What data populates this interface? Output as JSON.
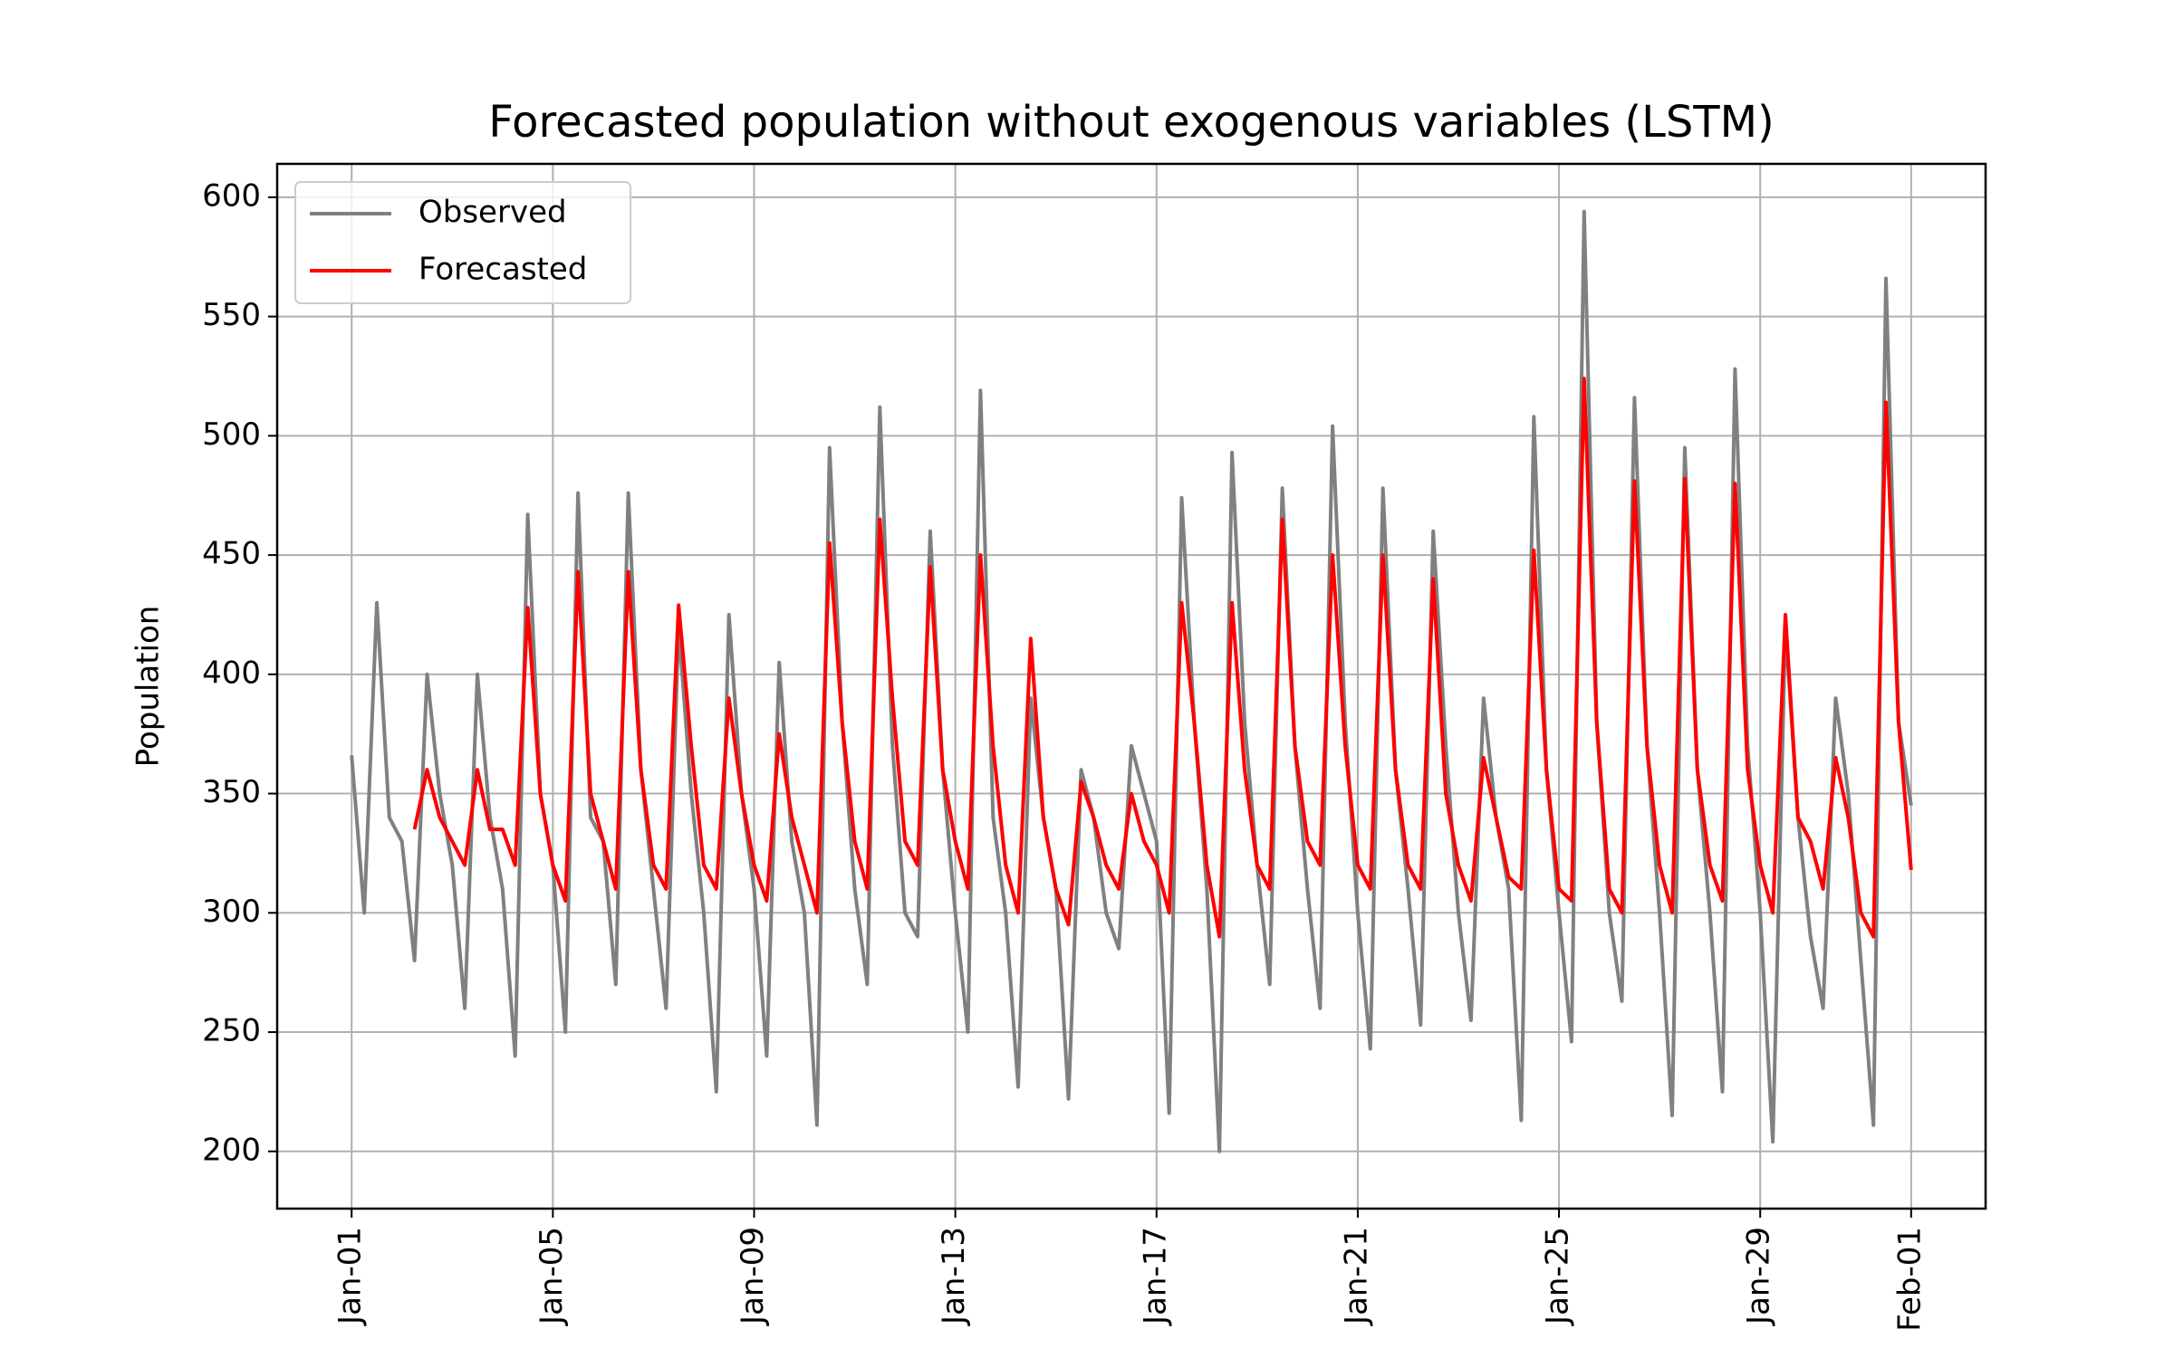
{
  "chart_data": {
    "type": "line",
    "title": "Forecasted population without exogenous variables (LSTM)",
    "y_label": "Population",
    "x": [
      0,
      0.25,
      0.5,
      0.75,
      1,
      1.25,
      1.5,
      1.75,
      2,
      2.25,
      2.5,
      2.75,
      3,
      3.25,
      3.5,
      3.75,
      4,
      4.25,
      4.5,
      4.75,
      5,
      5.25,
      5.5,
      5.75,
      6,
      6.25,
      6.5,
      6.75,
      7,
      7.25,
      7.5,
      7.75,
      8,
      8.25,
      8.5,
      8.75,
      9,
      9.25,
      9.5,
      9.75,
      10,
      10.25,
      10.5,
      10.75,
      11,
      11.25,
      11.5,
      11.75,
      12,
      12.25,
      12.5,
      12.75,
      13,
      13.25,
      13.5,
      13.75,
      14,
      14.25,
      14.5,
      14.75,
      15,
      15.25,
      15.5,
      15.75,
      16,
      16.25,
      16.5,
      16.75,
      17,
      17.25,
      17.5,
      17.75,
      18,
      18.25,
      18.5,
      18.75,
      19,
      19.25,
      19.5,
      19.75,
      20,
      20.25,
      20.5,
      20.75,
      21,
      21.25,
      21.5,
      21.75,
      22,
      22.25,
      22.5,
      22.75,
      23,
      23.25,
      23.5,
      23.75,
      24,
      24.25,
      24.5,
      24.75,
      25,
      25.25,
      25.5,
      25.75,
      26,
      26.25,
      26.5,
      26.75,
      27,
      27.25,
      27.5,
      27.75,
      28,
      28.25,
      28.5,
      28.75,
      29,
      29.25,
      29.5,
      29.75,
      30,
      30.25,
      30.5,
      30.75,
      31
    ],
    "series": [
      {
        "name": "Observed",
        "color": "#808080",
        "values": [
          366,
          300,
          430,
          340,
          330,
          280,
          400,
          350,
          320,
          260,
          400,
          340,
          310,
          240,
          467,
          350,
          320,
          250,
          476,
          340,
          330,
          270,
          476,
          360,
          310,
          260,
          420,
          350,
          300,
          225,
          425,
          350,
          310,
          240,
          405,
          330,
          300,
          211,
          495,
          380,
          310,
          270,
          512,
          370,
          300,
          290,
          460,
          360,
          300,
          250,
          519,
          340,
          300,
          227,
          390,
          340,
          310,
          222,
          360,
          340,
          300,
          285,
          370,
          350,
          330,
          216,
          474,
          380,
          310,
          200,
          493,
          380,
          320,
          270,
          478,
          370,
          310,
          260,
          504,
          380,
          300,
          243,
          478,
          360,
          310,
          253,
          460,
          370,
          300,
          255,
          390,
          340,
          310,
          213,
          508,
          360,
          300,
          246,
          594,
          380,
          300,
          263,
          516,
          370,
          300,
          215,
          495,
          360,
          300,
          225,
          528,
          370,
          300,
          204,
          420,
          340,
          290,
          260,
          390,
          350,
          280,
          211,
          566,
          380,
          345
        ]
      },
      {
        "name": "Forecasted",
        "color": "#ff0000",
        "values": [
          null,
          null,
          null,
          null,
          null,
          335,
          360,
          340,
          330,
          320,
          360,
          335,
          335,
          320,
          428,
          350,
          320,
          305,
          443,
          350,
          330,
          310,
          443,
          360,
          320,
          310,
          429,
          370,
          320,
          310,
          390,
          350,
          320,
          305,
          375,
          340,
          320,
          300,
          455,
          380,
          330,
          310,
          465,
          390,
          330,
          320,
          445,
          360,
          330,
          310,
          450,
          370,
          320,
          300,
          415,
          340,
          310,
          295,
          355,
          340,
          320,
          310,
          350,
          330,
          320,
          300,
          430,
          380,
          320,
          290,
          430,
          360,
          320,
          310,
          465,
          370,
          330,
          320,
          450,
          370,
          320,
          310,
          450,
          360,
          320,
          310,
          440,
          350,
          320,
          305,
          365,
          340,
          315,
          310,
          452,
          360,
          310,
          305,
          524,
          380,
          310,
          300,
          481,
          370,
          320,
          300,
          482,
          360,
          320,
          305,
          480,
          360,
          320,
          300,
          425,
          340,
          330,
          310,
          365,
          340,
          300,
          290,
          514,
          380,
          318
        ]
      }
    ],
    "xlim": [
      -1.48,
      32.48
    ],
    "xticks": [
      {
        "value": 0,
        "label": "Jan-01"
      },
      {
        "value": 4,
        "label": "Jan-05"
      },
      {
        "value": 8,
        "label": "Jan-09"
      },
      {
        "value": 12,
        "label": "Jan-13"
      },
      {
        "value": 16,
        "label": "Jan-17"
      },
      {
        "value": 20,
        "label": "Jan-21"
      },
      {
        "value": 24,
        "label": "Jan-25"
      },
      {
        "value": 28,
        "label": "Jan-29"
      },
      {
        "value": 31,
        "label": "Feb-01"
      }
    ],
    "ylim": [
      176,
      614
    ],
    "yticks": [
      200,
      250,
      300,
      350,
      400,
      450,
      500,
      550,
      600
    ],
    "grid": true,
    "legend": "upper left"
  }
}
